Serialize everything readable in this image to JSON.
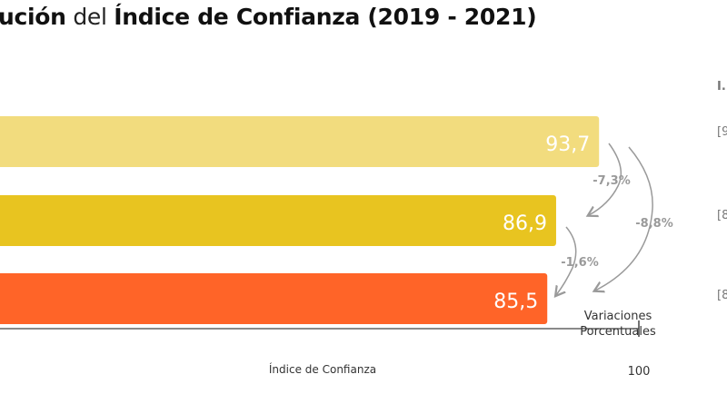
{
  "title": {
    "p1": "ución",
    "p2": " del ",
    "p3": "Índice de Confianza (2019 - 2021)"
  },
  "chart_data": {
    "type": "bar",
    "orientation": "horizontal",
    "values": [
      93.7,
      86.9,
      85.5
    ],
    "value_labels": [
      "93,7",
      "86,9",
      "85,5"
    ],
    "colors": [
      "#F2DC7E",
      "#E8C420",
      "#FF6428"
    ],
    "xlabel": "Índice de Confianza",
    "xlim": [
      0,
      100
    ],
    "x_ticks": [
      "100"
    ],
    "variations": [
      {
        "from": 0,
        "to": 1,
        "label": "-7,3%"
      },
      {
        "from": 1,
        "to": 2,
        "label": "-1,6%"
      },
      {
        "from": 0,
        "to": 2,
        "label": "-8,8%"
      }
    ],
    "variations_title": [
      "Variaciones",
      "Porcentuales"
    ]
  },
  "side": {
    "header": "I.",
    "items": [
      "[9",
      "[8",
      "[8"
    ]
  }
}
